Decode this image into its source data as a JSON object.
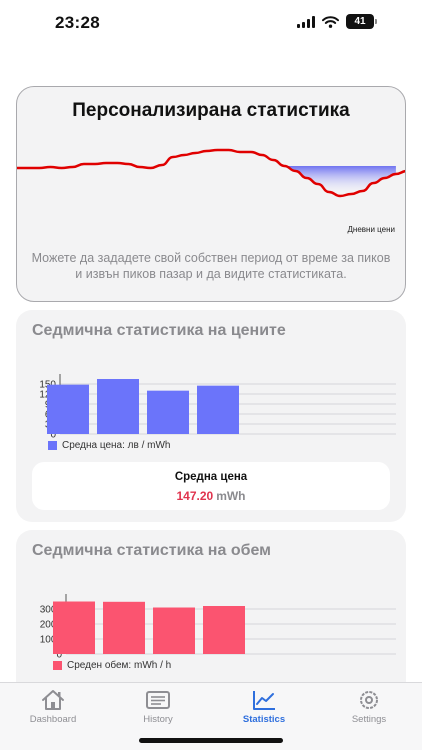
{
  "status": {
    "time": "23:28",
    "battery": "41"
  },
  "personal": {
    "title": "Персонализирана статистика",
    "graph_label": "Дневни цени",
    "description": "Можете да зададете свой собствен период от време за пиков и извън пиков пазар и да видите статистиката.",
    "line_color": "#e00000",
    "fill_color": "#6f73f0",
    "curve_values": [
      0.59,
      0.59,
      0.59,
      0.6,
      0.59,
      0.6,
      0.63,
      0.63,
      0.64,
      0.64,
      0.63,
      0.6,
      0.59,
      0.62,
      0.7,
      0.72,
      0.74,
      0.76,
      0.77,
      0.77,
      0.75,
      0.75,
      0.72,
      0.67,
      0.61,
      0.56,
      0.49,
      0.43,
      0.35,
      0.31,
      0.33,
      0.36,
      0.44,
      0.49,
      0.53,
      0.56
    ]
  },
  "weekly_prices": {
    "title": "Седмична статистика на цените",
    "bar_color": "#6b74fa",
    "legend": "Средна цена: лв / mWh",
    "avg_label": "Средна цена",
    "avg_value": "147.20",
    "avg_unit": "mWh",
    "chart_data": {
      "type": "bar",
      "values": [
        148,
        165,
        130,
        145
      ],
      "ylim": [
        0,
        180
      ],
      "yticks": [
        "150",
        "120",
        "90",
        "60",
        "30",
        "0"
      ],
      "ytick_values": [
        150,
        120,
        90,
        60,
        30,
        0
      ],
      "legend": "Средна цена: лв / mWh"
    }
  },
  "weekly_volume": {
    "title": "Седмична статистика на обем",
    "bar_color": "#fb5470",
    "legend": "Среден обем: mWh / h",
    "chart_data": {
      "type": "bar",
      "values": [
        3500,
        3480,
        3100,
        3200
      ],
      "ylim": [
        0,
        4000
      ],
      "yticks": [
        "3000",
        "2000",
        "1000",
        "0"
      ],
      "ytick_values": [
        3000,
        2000,
        1000,
        0
      ],
      "legend": "Среден обем: mWh / h"
    }
  },
  "tabs": [
    {
      "label": "Dashboard",
      "icon": "home-icon"
    },
    {
      "label": "History",
      "icon": "history-icon"
    },
    {
      "label": "Statistics",
      "icon": "statistics-icon"
    },
    {
      "label": "Settings",
      "icon": "settings-icon"
    }
  ],
  "accent_color": "#2f6fdd"
}
